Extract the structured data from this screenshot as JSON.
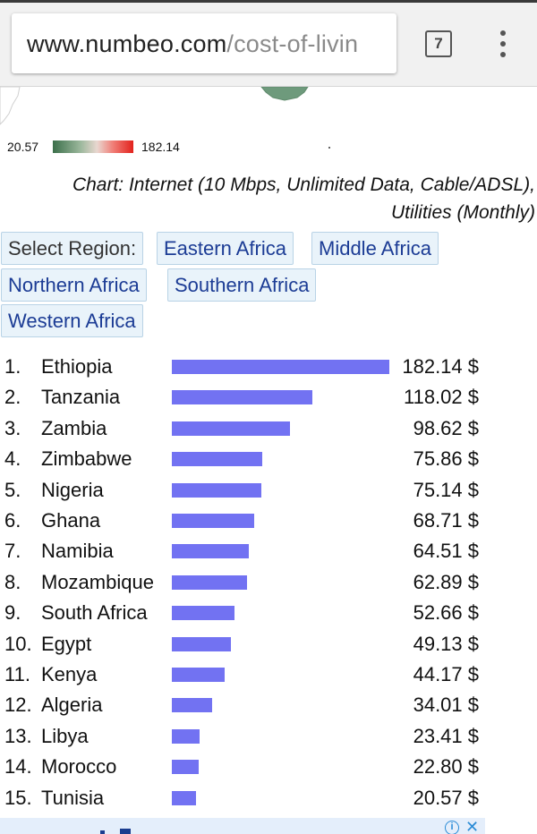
{
  "browser": {
    "url_host": "www.numbeo.com",
    "url_path": "/cost-of-livin",
    "tab_count": "7"
  },
  "legend": {
    "min": "20.57",
    "max": "182.14",
    "colors": [
      "#3b6f4a",
      "#e9d7d0",
      "#e2221c"
    ]
  },
  "caption": {
    "line1": "Chart: Internet (10 Mbps, Unlimited Data, Cable/ADSL),",
    "line2": "Utilities (Monthly)"
  },
  "regions": {
    "select_label": "Select Region:",
    "eastern": "Eastern Africa",
    "middle": "Middle Africa",
    "northern": "Northern Africa",
    "southern": "Southern Africa",
    "western": "Western Africa"
  },
  "chart_data": {
    "type": "bar",
    "orientation": "horizontal",
    "bar_color": "#7272f2",
    "unit": "$",
    "ranks": [
      "1.",
      "2.",
      "3.",
      "4.",
      "5.",
      "6.",
      "7.",
      "8.",
      "9.",
      "10.",
      "11.",
      "12.",
      "13.",
      "14.",
      "15."
    ],
    "categories": [
      "Ethiopia",
      "Tanzania",
      "Zambia",
      "Zimbabwe",
      "Nigeria",
      "Ghana",
      "Namibia",
      "Mozambique",
      "South Africa",
      "Egypt",
      "Kenya",
      "Algeria",
      "Libya",
      "Morocco",
      "Tunisia"
    ],
    "values": [
      182.14,
      118.02,
      98.62,
      75.86,
      75.14,
      68.71,
      64.51,
      62.89,
      52.66,
      49.13,
      44.17,
      34.01,
      23.41,
      22.8,
      20.57
    ],
    "value_labels": [
      "182.14 $",
      "118.02 $",
      "98.62 $",
      "75.86 $",
      "75.14 $",
      "68.71 $",
      "64.51 $",
      "62.89 $",
      "52.66 $",
      "49.13 $",
      "44.17 $",
      "34.01 $",
      "23.41 $",
      "22.80 $",
      "20.57 $"
    ]
  },
  "ad": {
    "info_icon": "info-icon",
    "close_icon": "close-icon"
  }
}
